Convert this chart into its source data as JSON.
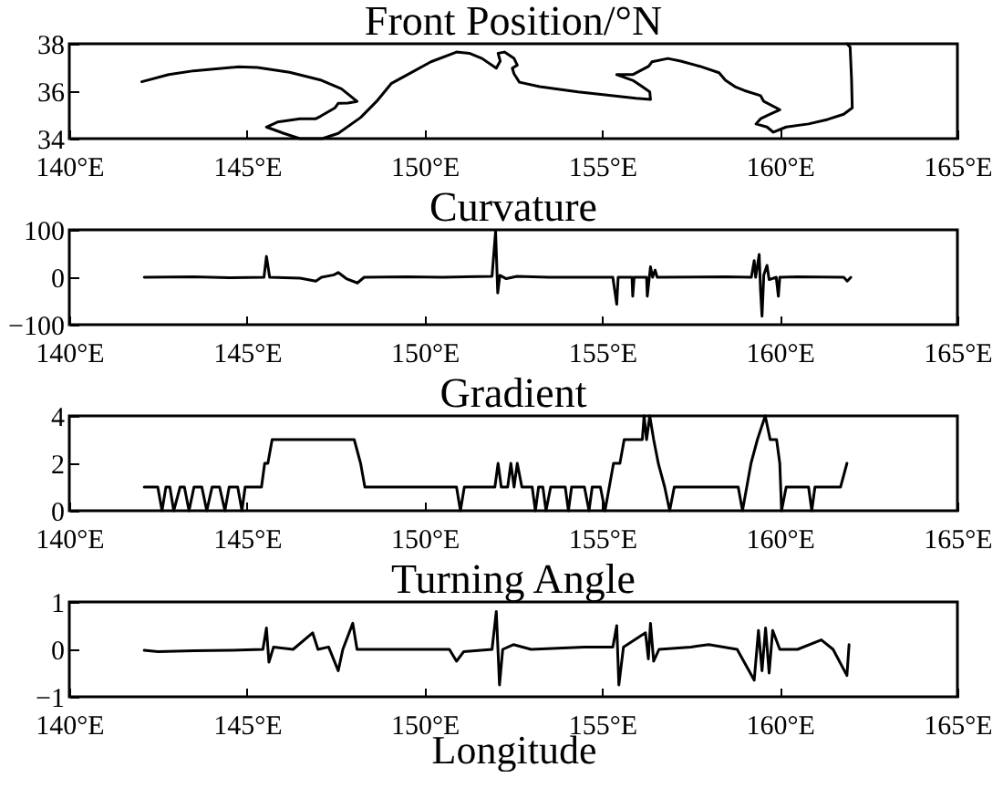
{
  "chart_data": [
    {
      "type": "line",
      "title": "Front Position/°N",
      "xlim": [
        140,
        165
      ],
      "xticks": [
        {
          "value": 140,
          "label": "140°E"
        },
        {
          "value": 145,
          "label": "145°E"
        },
        {
          "value": 150,
          "label": "150°E"
        },
        {
          "value": 155,
          "label": "155°E"
        },
        {
          "value": 160,
          "label": "160°E"
        },
        {
          "value": 165,
          "label": "165°E"
        }
      ],
      "ylim": [
        34,
        38
      ],
      "yticks": [
        34,
        36,
        38
      ],
      "x": [
        142.04,
        142.8,
        143.5,
        144.77,
        145.3,
        146.2,
        147.1,
        147.66,
        148.1,
        147.84,
        147.57,
        147.48,
        147.08,
        146.94,
        146.49,
        145.86,
        145.55,
        146.04,
        146.49,
        147.12,
        147.57,
        148.2,
        148.65,
        149.06,
        149.46,
        150.18,
        150.9,
        151.26,
        151.62,
        152.02,
        152.13,
        152.07,
        152.25,
        152.52,
        152.61,
        152.47,
        152.52,
        152.67,
        153.24,
        154.32,
        155.14,
        155.95,
        156.36,
        156.34,
        156.13,
        155.86,
        155.41,
        155.86,
        156.31,
        156.4,
        156.85,
        157.21,
        157.75,
        158.29,
        158.47,
        158.74,
        159.0,
        159.46,
        159.55,
        160.0,
        159.73,
        159.46,
        159.33,
        159.64,
        159.82,
        160.18,
        160.81,
        161.35,
        161.8,
        162.04,
        162.02,
        161.98,
        161.89
      ],
      "series": [
        {
          "color": "#000000",
          "values": [
            36.4,
            36.7,
            36.86,
            37.03,
            37.0,
            36.8,
            36.46,
            36.1,
            35.57,
            35.5,
            35.49,
            35.3,
            34.95,
            34.84,
            34.84,
            34.7,
            34.49,
            34.22,
            34.0,
            34.0,
            34.22,
            34.89,
            35.57,
            36.32,
            36.65,
            37.24,
            37.65,
            37.6,
            37.38,
            36.97,
            37.27,
            37.6,
            37.65,
            37.38,
            37.1,
            36.97,
            36.73,
            36.38,
            36.19,
            35.97,
            35.84,
            35.7,
            35.65,
            35.97,
            36.19,
            36.46,
            36.7,
            36.7,
            37.05,
            37.24,
            37.38,
            37.27,
            37.05,
            36.78,
            36.46,
            36.19,
            36.03,
            35.81,
            35.57,
            35.22,
            35.03,
            34.84,
            34.62,
            34.49,
            34.27,
            34.49,
            34.62,
            34.81,
            35.03,
            35.3,
            36.51,
            37.86,
            38.0
          ]
        }
      ]
    },
    {
      "type": "line",
      "title": "Curvature",
      "xlim": [
        140,
        165
      ],
      "xticks": [
        {
          "value": 140,
          "label": "140°E"
        },
        {
          "value": 145,
          "label": "145°E"
        },
        {
          "value": 150,
          "label": "150°E"
        },
        {
          "value": 155,
          "label": "155°E"
        },
        {
          "value": 160,
          "label": "160°E"
        },
        {
          "value": 165,
          "label": "165°E"
        }
      ],
      "ylim": [
        -100,
        100
      ],
      "yticks": [
        {
          "value": -100,
          "label": "−100"
        },
        0,
        100
      ],
      "x": [
        142.11,
        143.5,
        144.5,
        145.48,
        145.55,
        145.64,
        146.5,
        146.94,
        147.1,
        147.45,
        147.57,
        147.8,
        148.11,
        148.3,
        149.5,
        150.5,
        151.9,
        152.0,
        152.06,
        152.12,
        152.3,
        152.6,
        153.5,
        155.3,
        155.41,
        155.45,
        155.84,
        155.86,
        155.9,
        156.25,
        156.27,
        156.36,
        156.42,
        156.49,
        156.55,
        158.5,
        159.2,
        159.28,
        159.32,
        159.42,
        159.46,
        159.5,
        159.55,
        159.64,
        159.7,
        159.9,
        159.96,
        160.0,
        160.5,
        161.8,
        161.9,
        162.0
      ],
      "series": [
        {
          "color": "#000000",
          "values": [
            0,
            1,
            -1,
            0,
            44,
            0,
            -2,
            -8,
            0,
            5,
            10,
            -3,
            -12,
            0,
            1,
            0,
            2,
            97,
            -33,
            4,
            -3,
            2,
            0,
            0,
            -57,
            0,
            0,
            -40,
            0,
            0,
            -40,
            22,
            0,
            15,
            0,
            1,
            0,
            35,
            0,
            48,
            -30,
            -82,
            5,
            25,
            -5,
            0,
            -40,
            0,
            1,
            0,
            -8,
            0
          ]
        }
      ]
    },
    {
      "type": "line",
      "title": "Gradient",
      "xlim": [
        140,
        165
      ],
      "xticks": [
        {
          "value": 140,
          "label": "140°E"
        },
        {
          "value": 145,
          "label": "145°E"
        },
        {
          "value": 150,
          "label": "150°E"
        },
        {
          "value": 155,
          "label": "155°E"
        },
        {
          "value": 160,
          "label": "160°E"
        },
        {
          "value": 165,
          "label": "165°E"
        }
      ],
      "ylim": [
        0,
        4
      ],
      "yticks": [
        0,
        2,
        4
      ],
      "x": [
        142.11,
        142.49,
        142.61,
        142.72,
        142.83,
        142.94,
        143.12,
        143.24,
        143.37,
        143.51,
        143.73,
        143.87,
        144.02,
        144.23,
        144.38,
        144.5,
        144.74,
        144.86,
        144.95,
        145.23,
        145.41,
        145.5,
        145.59,
        145.71,
        148.02,
        148.2,
        148.32,
        150.9,
        151.01,
        151.12,
        151.98,
        152.07,
        152.16,
        152.34,
        152.43,
        152.52,
        152.61,
        152.74,
        153.03,
        153.12,
        153.21,
        153.33,
        153.42,
        153.55,
        153.96,
        154.05,
        154.14,
        154.5,
        154.63,
        154.72,
        154.95,
        155.08,
        155.32,
        155.5,
        155.62,
        156.13,
        156.18,
        156.25,
        156.34,
        156.45,
        156.58,
        156.76,
        156.9,
        157.03,
        158.83,
        158.95,
        159.19,
        159.37,
        159.59,
        159.73,
        159.91,
        160.0,
        160.05,
        160.18,
        160.81,
        160.9,
        160.99,
        161.71,
        161.89
      ],
      "series": [
        {
          "color": "#000000",
          "values": [
            1,
            1,
            0,
            1,
            1,
            0,
            1,
            1,
            0,
            1,
            1,
            0,
            1,
            1,
            0,
            1,
            1,
            0,
            1,
            1,
            1,
            2,
            2,
            3,
            3,
            2,
            1,
            1,
            0,
            1,
            1,
            2,
            1,
            1,
            2,
            1,
            2,
            1,
            1,
            0,
            1,
            1,
            0,
            1,
            1,
            0,
            1,
            1,
            0,
            1,
            1,
            0,
            2,
            2,
            3,
            3,
            4,
            3,
            4,
            3,
            2,
            1,
            0,
            1,
            1,
            0,
            2,
            3,
            4,
            3,
            3,
            2,
            0,
            1,
            1,
            0,
            1,
            1,
            2
          ]
        }
      ]
    },
    {
      "type": "line",
      "title": "Turning Angle",
      "xlabel": "Longitude",
      "xlim": [
        140,
        165
      ],
      "xticks": [
        {
          "value": 140,
          "label": "140°E"
        },
        {
          "value": 145,
          "label": "145°E"
        },
        {
          "value": 150,
          "label": "150°E"
        },
        {
          "value": 155,
          "label": "155°E"
        },
        {
          "value": 160,
          "label": "160°E"
        },
        {
          "value": 165,
          "label": "165°E"
        }
      ],
      "ylim": [
        -1,
        1
      ],
      "yticks": [
        {
          "value": -1,
          "label": "−1"
        },
        0,
        1
      ],
      "x": [
        142.11,
        142.5,
        143.5,
        144.5,
        145.45,
        145.55,
        145.62,
        145.75,
        146.3,
        146.85,
        147.0,
        147.3,
        147.57,
        147.7,
        147.98,
        148.1,
        149.0,
        150.7,
        150.9,
        151.1,
        151.9,
        152.02,
        152.11,
        152.2,
        152.5,
        153.0,
        154.5,
        155.3,
        155.41,
        155.47,
        155.6,
        156.22,
        156.3,
        156.36,
        156.45,
        156.6,
        157.5,
        158.0,
        158.8,
        159.28,
        159.4,
        159.5,
        159.6,
        159.7,
        159.8,
        160.0,
        160.5,
        161.17,
        161.5,
        161.89,
        161.95
      ],
      "series": [
        {
          "color": "#000000",
          "values": [
            -0.02,
            -0.05,
            -0.03,
            -0.02,
            0,
            0.45,
            -0.27,
            0.05,
            0,
            0.35,
            0,
            0.05,
            -0.45,
            0,
            0.55,
            0,
            0,
            0,
            -0.25,
            -0.05,
            0,
            0.8,
            -0.75,
            0,
            0.1,
            0,
            0.05,
            0.05,
            0.5,
            -0.75,
            0.05,
            0.35,
            -0.2,
            0.55,
            -0.25,
            0,
            0.05,
            0.1,
            0,
            -0.65,
            0.4,
            -0.45,
            0.45,
            -0.5,
            0.4,
            0,
            0,
            0.2,
            0,
            -0.55,
            0.1
          ]
        }
      ]
    }
  ]
}
